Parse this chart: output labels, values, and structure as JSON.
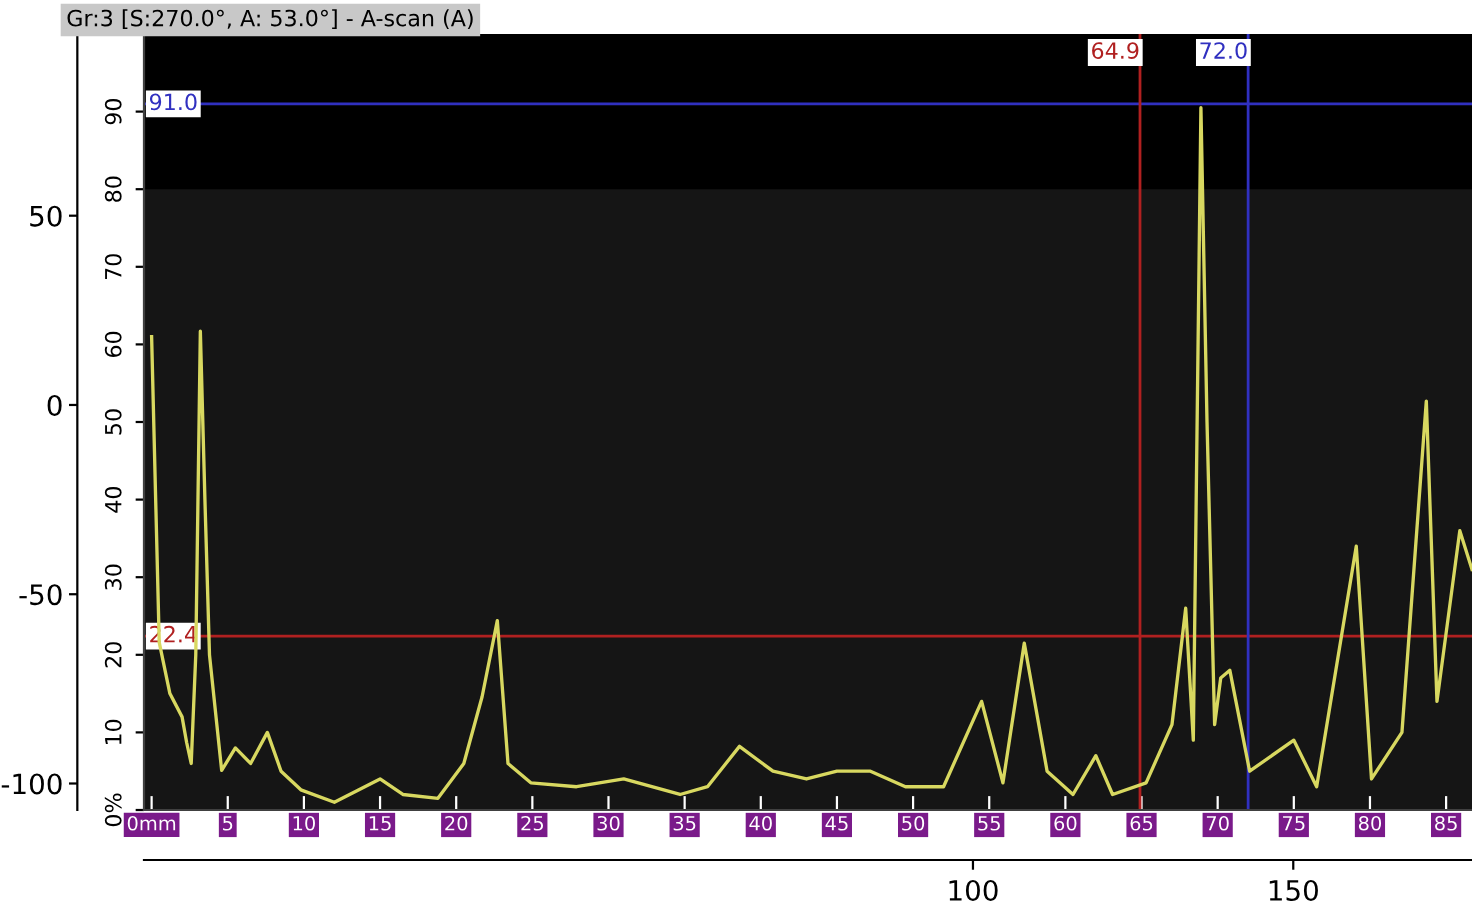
{
  "chart_data": {
    "type": "line",
    "title": "Gr:3 [S:270.0°, A: 53.0°] - A-scan (A)",
    "series": [
      {
        "color": "#d8d860",
        "x": [
          0,
          0.5,
          1.2,
          2.0,
          2.3,
          2.6,
          2.9,
          3.2,
          3.5,
          3.8,
          4.6,
          5.5,
          6.5,
          7.6,
          8.5,
          9.8,
          12,
          15,
          16.5,
          18.8,
          20.5,
          21.7,
          22.7,
          23.4,
          24.9,
          27.9,
          31,
          34.7,
          36.5,
          38.6,
          40.8,
          43,
          45,
          47.2,
          49.5,
          52,
          54.5,
          55.9,
          57.3,
          58.8,
          60.5,
          62,
          63.1,
          65.3,
          67,
          67.9,
          68.4,
          68.9,
          69.3,
          69.8,
          70.2,
          70.8,
          72.1,
          75,
          76.5,
          79.1,
          80.1,
          82.1,
          83.7,
          84.4,
          85.9,
          86.7
        ],
        "values": [
          61,
          21.6,
          15,
          12,
          8.7,
          6,
          20,
          61.7,
          40,
          20,
          5.1,
          8,
          6,
          10,
          5,
          2.6,
          1,
          4,
          2,
          1.5,
          6,
          14.6,
          24.4,
          6,
          3.5,
          3,
          4,
          2,
          3,
          8.2,
          5,
          4,
          5,
          5,
          3,
          3,
          14,
          3.5,
          21.5,
          5,
          2,
          7,
          2,
          3.5,
          11,
          26,
          9,
          90.5,
          50,
          11,
          17,
          18,
          5,
          9,
          3,
          34,
          4,
          10,
          52.7,
          14,
          36,
          31
        ]
      }
    ],
    "xlim": [
      -0.5,
      86.7
    ],
    "ylim": [
      0,
      100
    ],
    "xticks": [
      {
        "value": 0,
        "label": "0mm"
      },
      5,
      10,
      15,
      20,
      25,
      30,
      35,
      40,
      45,
      50,
      55,
      60,
      65,
      70,
      75,
      80,
      85
    ],
    "yticks": [
      {
        "value": 0,
        "label": "0%"
      },
      10,
      20,
      30,
      40,
      50,
      60,
      70,
      80,
      90
    ],
    "y2lim": [
      -107,
      98
    ],
    "y2ticks": [
      -100,
      -50,
      0,
      50
    ],
    "x2lim": [
      -29.4,
      177.9
    ],
    "x2ticks": [
      100,
      150
    ],
    "ref_lines": [
      {
        "axis": "y",
        "value": 91.0,
        "label": "91.0",
        "color": "#3030c0"
      },
      {
        "axis": "y",
        "value": 22.4,
        "label": "22.4",
        "color": "#b02020"
      },
      {
        "axis": "x",
        "value": 64.9,
        "label": "64.9",
        "color": "#b02020"
      },
      {
        "axis": "x",
        "value": 72.0,
        "label": "72.0",
        "color": "#3030c0"
      }
    ],
    "bands": [
      {
        "axis": "y",
        "from": 80,
        "to": 100,
        "color": "#000000"
      }
    ],
    "grid": false,
    "legend": false,
    "marker": "none",
    "line_style": "solid"
  }
}
